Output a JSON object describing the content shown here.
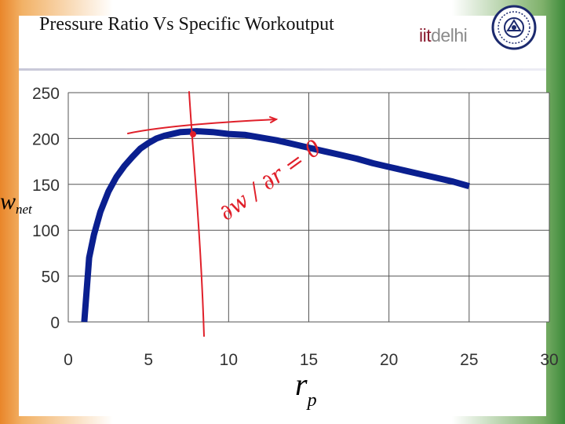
{
  "slide": {
    "title": "Pressure Ratio Vs Specific Workoutput",
    "logo": {
      "iit": "iit",
      "delhi": "delhi"
    }
  },
  "axis_labels": {
    "y_main": "w",
    "y_sub": "net",
    "x_main": "r",
    "x_sub": "p"
  },
  "annotation": {
    "text": "∂w / ∂r = 0",
    "color": "#e0202a"
  },
  "chart_data": {
    "type": "line",
    "title": "",
    "xlim": [
      0,
      30
    ],
    "ylim": [
      0,
      250
    ],
    "x_ticks": [
      0,
      5,
      10,
      15,
      20,
      25,
      30
    ],
    "y_ticks": [
      0,
      50,
      100,
      150,
      200,
      250
    ],
    "grid": true,
    "series": [
      {
        "color": "#0a1f8f",
        "points": [
          [
            1.0,
            0
          ],
          [
            1.3,
            70
          ],
          [
            1.6,
            95
          ],
          [
            2.0,
            120
          ],
          [
            2.5,
            142
          ],
          [
            3.0,
            158
          ],
          [
            3.5,
            170
          ],
          [
            4.0,
            180
          ],
          [
            4.5,
            189
          ],
          [
            5.0,
            195
          ],
          [
            5.5,
            200
          ],
          [
            6.0,
            203
          ],
          [
            7.0,
            207
          ],
          [
            8.0,
            208
          ],
          [
            9.0,
            207
          ],
          [
            10.0,
            205
          ],
          [
            11.0,
            204
          ],
          [
            12.0,
            201
          ],
          [
            13.0,
            198
          ],
          [
            14.0,
            194
          ],
          [
            15.0,
            190
          ],
          [
            16.0,
            186
          ],
          [
            17.0,
            182
          ],
          [
            18.0,
            178
          ],
          [
            19.0,
            173
          ],
          [
            20.0,
            169
          ],
          [
            21.0,
            165
          ],
          [
            22.0,
            161
          ],
          [
            23.0,
            157
          ],
          [
            24.0,
            153
          ],
          [
            25.0,
            148
          ]
        ]
      }
    ]
  }
}
